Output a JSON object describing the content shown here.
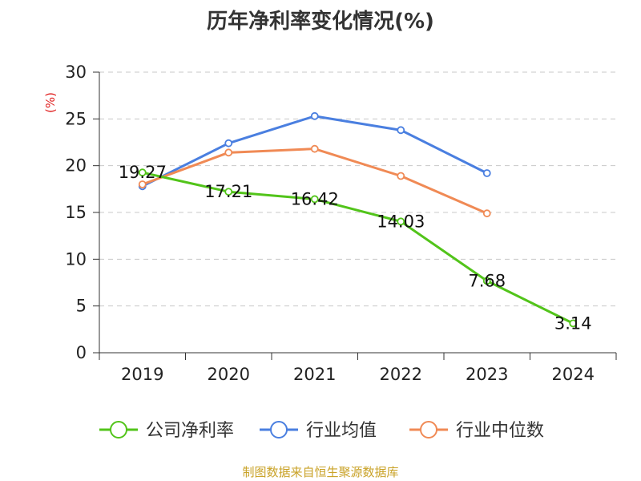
{
  "title": "历年净利率变化情况(%)",
  "source": "制图数据来自恒生聚源数据库",
  "chart_data": {
    "type": "line",
    "title": "历年净利率变化情况(%)",
    "ylabel": "(%)",
    "xlabel": "",
    "categories": [
      "2019",
      "2020",
      "2021",
      "2022",
      "2023",
      "2024"
    ],
    "ylim": [
      0,
      30
    ],
    "yticks": [
      0,
      5,
      10,
      15,
      20,
      25,
      30
    ],
    "grid": true,
    "legend_position": "bottom",
    "series": [
      {
        "name": "公司净利率",
        "color": "#52c41a",
        "values": [
          19.27,
          17.21,
          16.42,
          14.03,
          7.68,
          3.14
        ],
        "labels": [
          "19.27",
          "17.21",
          "16.42",
          "14.03",
          "7.68",
          "3.14"
        ]
      },
      {
        "name": "行业均值",
        "color": "#4a7fe0",
        "values": [
          17.8,
          22.4,
          25.3,
          23.8,
          19.2,
          null
        ]
      },
      {
        "name": "行业中位数",
        "color": "#f08a55",
        "values": [
          18.0,
          21.4,
          21.8,
          18.9,
          14.9,
          null
        ]
      }
    ]
  }
}
